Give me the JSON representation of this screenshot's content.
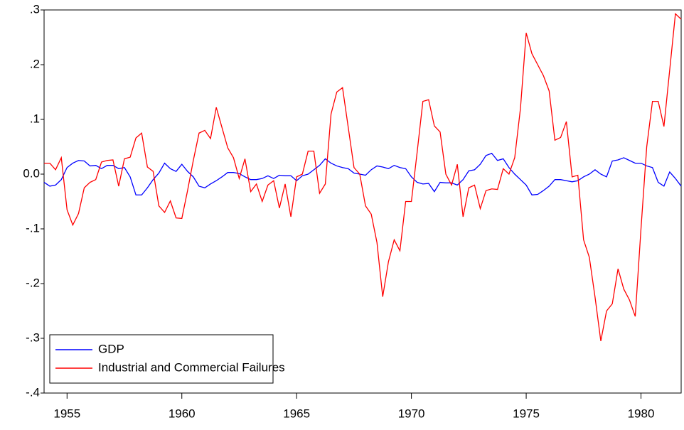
{
  "chart_data": {
    "type": "line",
    "x": [
      1954,
      1954.25,
      1954.5,
      1954.75,
      1955,
      1955.25,
      1955.5,
      1955.75,
      1956,
      1956.25,
      1956.5,
      1956.75,
      1957,
      1957.25,
      1957.5,
      1957.75,
      1958,
      1958.25,
      1958.5,
      1958.75,
      1959,
      1959.25,
      1959.5,
      1959.75,
      1960,
      1960.25,
      1960.5,
      1960.75,
      1961,
      1961.25,
      1961.5,
      1961.75,
      1962,
      1962.25,
      1962.5,
      1962.75,
      1963,
      1963.25,
      1963.5,
      1963.75,
      1964,
      1964.25,
      1964.5,
      1964.75,
      1965,
      1965.25,
      1965.5,
      1965.75,
      1966,
      1966.25,
      1966.5,
      1966.75,
      1967,
      1967.25,
      1967.5,
      1967.75,
      1968,
      1968.25,
      1968.5,
      1968.75,
      1969,
      1969.25,
      1969.5,
      1969.75,
      1970,
      1970.25,
      1970.5,
      1970.75,
      1971,
      1971.25,
      1971.5,
      1971.75,
      1972,
      1972.25,
      1972.5,
      1972.75,
      1973,
      1973.25,
      1973.5,
      1973.75,
      1974,
      1974.25,
      1974.5,
      1974.75,
      1975,
      1975.25,
      1975.5,
      1975.75,
      1976,
      1976.25,
      1976.5,
      1976.75,
      1977,
      1977.25,
      1977.5,
      1977.75,
      1978,
      1978.25,
      1978.5,
      1978.75,
      1979,
      1979.25,
      1979.5,
      1979.75,
      1980,
      1980.25,
      1980.5,
      1980.75,
      1981,
      1981.25,
      1981.5,
      1981.75
    ],
    "series": [
      {
        "name": "GDP",
        "color": "#0000ff",
        "values": [
          -0.015,
          -0.022,
          -0.02,
          -0.01,
          0.012,
          0.02,
          0.025,
          0.024,
          0.015,
          0.016,
          0.01,
          0.016,
          0.016,
          0.01,
          0.012,
          -0.005,
          -0.038,
          -0.038,
          -0.025,
          -0.01,
          0.002,
          0.02,
          0.01,
          0.005,
          0.018,
          0.005,
          -0.005,
          -0.022,
          -0.025,
          -0.018,
          -0.012,
          -0.005,
          0.003,
          0.003,
          0.001,
          -0.005,
          -0.01,
          -0.01,
          -0.008,
          -0.003,
          -0.008,
          -0.002,
          -0.003,
          -0.003,
          -0.012,
          -0.003,
          0.0,
          0.008,
          0.016,
          0.028,
          0.02,
          0.015,
          0.012,
          0.01,
          0.002,
          0.0,
          -0.002,
          0.008,
          0.015,
          0.013,
          0.01,
          0.016,
          0.012,
          0.01,
          -0.005,
          -0.015,
          -0.018,
          -0.017,
          -0.032,
          -0.015,
          -0.016,
          -0.016,
          -0.02,
          -0.01,
          0.006,
          0.008,
          0.018,
          0.034,
          0.038,
          0.025,
          0.028,
          0.012,
          0.0,
          -0.01,
          -0.02,
          -0.038,
          -0.037,
          -0.03,
          -0.022,
          -0.01,
          -0.01,
          -0.012,
          -0.014,
          -0.012,
          -0.005,
          0.0,
          0.008,
          0.0,
          -0.005,
          0.024,
          0.026,
          0.03,
          0.025,
          0.02,
          0.02,
          0.015,
          0.012,
          -0.015,
          -0.022,
          0.004,
          -0.008,
          -0.022
        ]
      },
      {
        "name": "Industrial and Commercial Failures",
        "color": "#ff0000",
        "values": [
          0.02,
          0.02,
          0.008,
          0.03,
          -0.065,
          -0.093,
          -0.072,
          -0.025,
          -0.015,
          -0.01,
          0.022,
          0.025,
          0.026,
          -0.022,
          0.028,
          0.031,
          0.066,
          0.075,
          0.013,
          0.005,
          -0.058,
          -0.07,
          -0.049,
          -0.08,
          -0.081,
          -0.03,
          0.025,
          0.075,
          0.08,
          0.065,
          0.122,
          0.085,
          0.048,
          0.03,
          -0.008,
          0.028,
          -0.032,
          -0.018,
          -0.05,
          -0.02,
          -0.012,
          -0.062,
          -0.018,
          -0.078,
          -0.005,
          0.0,
          0.042,
          0.042,
          -0.035,
          -0.018,
          0.11,
          0.15,
          0.158,
          0.085,
          0.012,
          0.0,
          -0.058,
          -0.073,
          -0.125,
          -0.224,
          -0.16,
          -0.12,
          -0.14,
          -0.05,
          -0.05,
          0.04,
          0.133,
          0.136,
          0.088,
          0.077,
          0.0,
          -0.02,
          0.018,
          -0.078,
          -0.025,
          -0.02,
          -0.063,
          -0.03,
          -0.027,
          -0.028,
          0.01,
          0.0,
          0.03,
          0.12,
          0.258,
          0.22,
          0.2,
          0.18,
          0.152,
          0.062,
          0.067,
          0.096,
          -0.005,
          -0.002,
          -0.12,
          -0.152,
          -0.225,
          -0.305,
          -0.25,
          -0.237,
          -0.173,
          -0.21,
          -0.23,
          -0.26,
          -0.1,
          0.05,
          0.133,
          0.133,
          0.087,
          0.19,
          0.293,
          0.283
        ]
      }
    ],
    "xlim": [
      1954,
      1981.75
    ],
    "xticks": [
      1955,
      1960,
      1965,
      1970,
      1975,
      1980
    ],
    "ylim": [
      -0.4,
      0.3
    ],
    "yticks": [
      {
        "value": -0.4,
        "label": "-.4"
      },
      {
        "value": -0.3,
        "label": "-.3"
      },
      {
        "value": -0.2,
        "label": "-.2"
      },
      {
        "value": -0.1,
        "label": "-.1"
      },
      {
        "value": 0,
        "label": "0.0"
      },
      {
        "value": 0.1,
        "label": ".1"
      },
      {
        "value": 0.2,
        "label": ".2"
      },
      {
        "value": 0.3,
        "label": ".3"
      }
    ],
    "grid": false,
    "legend": "lower-left"
  }
}
